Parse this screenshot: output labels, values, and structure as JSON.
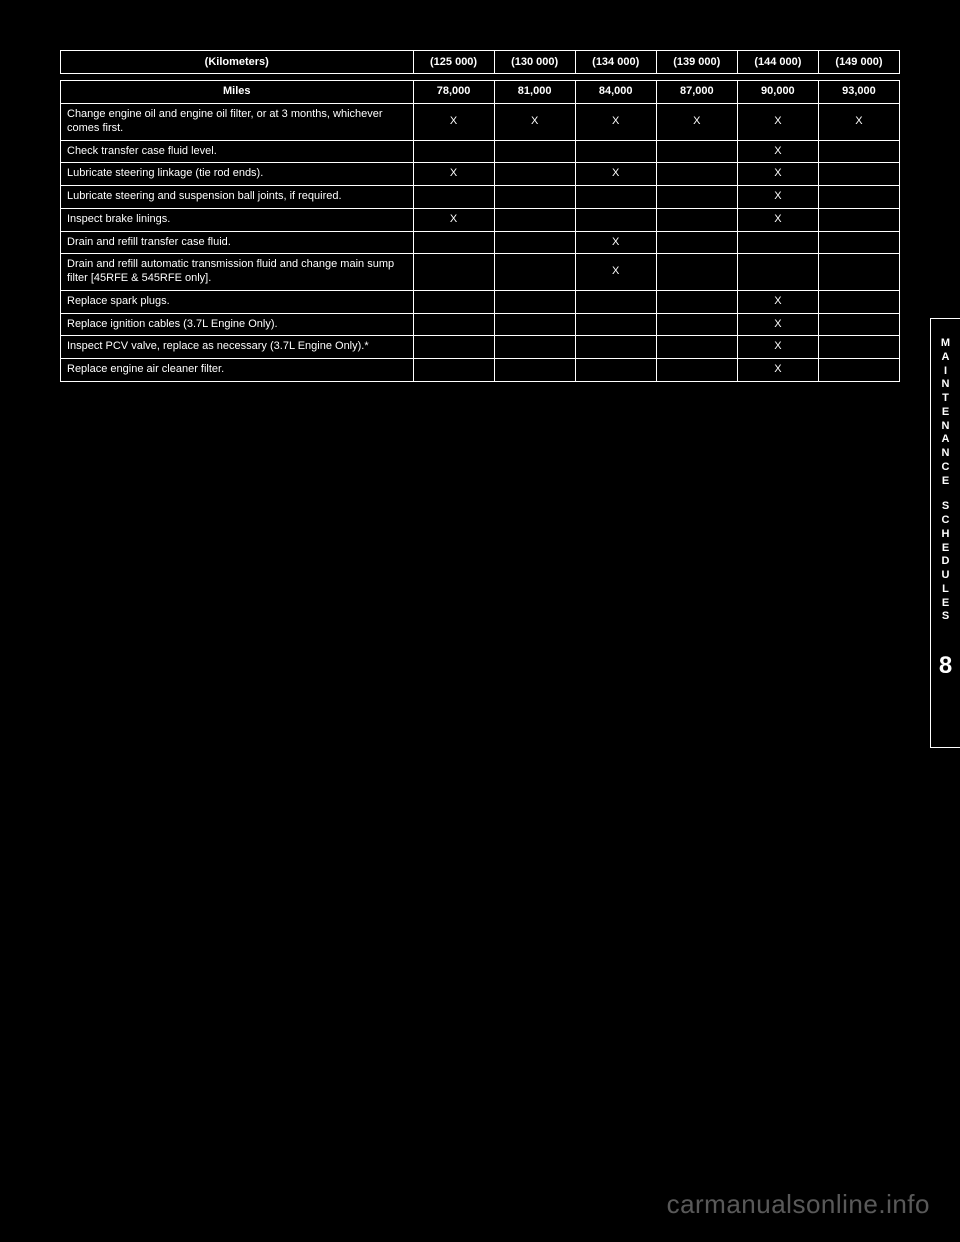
{
  "header": {
    "c1": "(Kilometers)",
    "c2": "(125 000)",
    "c3": "(130 000)",
    "c4": "(134 000)",
    "c5": "(139 000)",
    "c6": "(144 000)",
    "c7": "(149 000)"
  },
  "head_row": {
    "c1": "Miles",
    "c2": "78,000",
    "c3": "81,000",
    "c4": "84,000",
    "c5": "87,000",
    "c6": "90,000",
    "c7": "93,000"
  },
  "rows": [
    {
      "label": "Change engine oil and engine oil filter, or at 3 months, whichever comes first.",
      "v": [
        "X",
        "X",
        "X",
        "X",
        "X",
        "X"
      ]
    },
    {
      "label": "Check transfer case fluid level.",
      "v": [
        "",
        "",
        "",
        "",
        "X",
        ""
      ]
    },
    {
      "label": "Lubricate steering linkage (tie rod ends).",
      "v": [
        "X",
        "",
        "X",
        "",
        "X",
        ""
      ]
    },
    {
      "label": "Lubricate steering and suspension ball joints, if required.",
      "v": [
        "",
        "",
        "",
        "",
        "X",
        ""
      ]
    },
    {
      "label": "Inspect brake linings.",
      "v": [
        "X",
        "",
        "",
        "",
        "X",
        ""
      ]
    },
    {
      "label": "Drain and refill transfer case fluid.",
      "v": [
        "",
        "",
        "X",
        "",
        "",
        ""
      ]
    },
    {
      "label": "Drain and refill automatic transmission fluid and change main sump filter [45RFE & 545RFE only].",
      "v": [
        "",
        "",
        "X",
        "",
        "",
        ""
      ]
    },
    {
      "label": "Replace spark plugs.",
      "v": [
        "",
        "",
        "",
        "",
        "X",
        ""
      ]
    },
    {
      "label": "Replace ignition cables (3.7L Engine Only).",
      "v": [
        "",
        "",
        "",
        "",
        "X",
        ""
      ]
    },
    {
      "label": "Inspect PCV valve, replace as necessary (3.7L Engine Only).*",
      "v": [
        "",
        "",
        "",
        "",
        "X",
        ""
      ]
    },
    {
      "label": "Replace engine air cleaner filter.",
      "v": [
        "",
        "",
        "",
        "",
        "X",
        ""
      ]
    }
  ],
  "sidebar": {
    "word1": [
      "M",
      "A",
      "I",
      "N",
      "T",
      "E",
      "N",
      "A",
      "N",
      "C",
      "E"
    ],
    "word2": [
      "S",
      "C",
      "H",
      "E",
      "D",
      "U",
      "L",
      "E",
      "S"
    ],
    "section": "8"
  },
  "watermark": "carmanualsonline.info"
}
